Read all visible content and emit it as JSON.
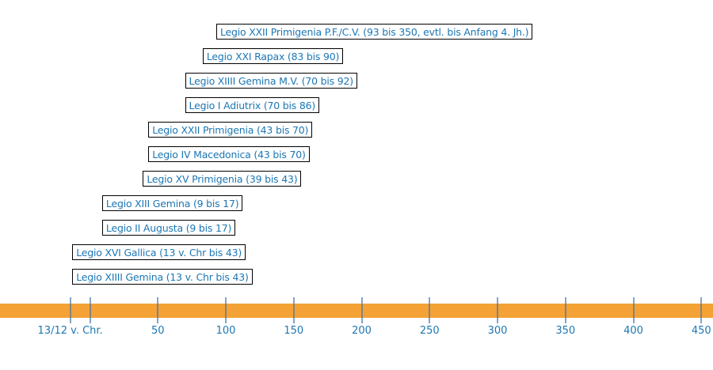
{
  "colors": {
    "background": "#ffffff",
    "link_text": "#1c77b4",
    "box_border": "#000000",
    "timeline_bar": "#f4a136",
    "tick_line": "rgba(70,115,165,0.65)"
  },
  "chart_data": {
    "type": "bar",
    "subtype": "horizontal-timeline-gantt of Roman legion garrison periods",
    "legend_position": "none",
    "grid": "vertical ticks crossing the year bar",
    "items": [
      {
        "label": "Legio XXII Primigenia P.F./C.V. (93 bis 350, evtl. bis Anfang 4. Jh.)",
        "start": 93,
        "end": 350
      },
      {
        "label": "Legio XXI Rapax (83 bis 90)",
        "start": 83,
        "end": 90
      },
      {
        "label": "Legio XIIII Gemina M.V. (70 bis 92)",
        "start": 70,
        "end": 92
      },
      {
        "label": "Legio I Adiutrix (70 bis 86)",
        "start": 70,
        "end": 86
      },
      {
        "label": "Legio XXII Primigenia (43 bis 70)",
        "start": 43,
        "end": 70
      },
      {
        "label": "Legio IV Macedonica (43 bis 70)",
        "start": 43,
        "end": 70
      },
      {
        "label": "Legio XV Primigenia (39 bis 43)",
        "start": 39,
        "end": 43
      },
      {
        "label": "Legio XIII Gemina (9 bis 17)",
        "start": 9,
        "end": 17
      },
      {
        "label": "Legio II Augusta (9 bis 17)",
        "start": 9,
        "end": 17
      },
      {
        "label": "Legio XVI Gallica (13 v. Chr bis 43)",
        "start": -13,
        "end": 43
      },
      {
        "label": "Legio XIIII Gemina (13 v. Chr bis 43)",
        "start": -13,
        "end": 43
      }
    ],
    "axis": {
      "orientation": "horizontal-bottom",
      "range_years": [
        -66,
        459
      ],
      "ticks": [
        {
          "year": -14.5,
          "label": "13/12 v. Chr."
        },
        {
          "year": 0,
          "label": ""
        },
        {
          "year": 50,
          "label": "50"
        },
        {
          "year": 100,
          "label": "100"
        },
        {
          "year": 150,
          "label": "150"
        },
        {
          "year": 200,
          "label": "200"
        },
        {
          "year": 250,
          "label": "250"
        },
        {
          "year": 300,
          "label": "300"
        },
        {
          "year": 350,
          "label": "350"
        },
        {
          "year": 400,
          "label": "400"
        },
        {
          "year": 450,
          "label": "450"
        }
      ]
    }
  }
}
